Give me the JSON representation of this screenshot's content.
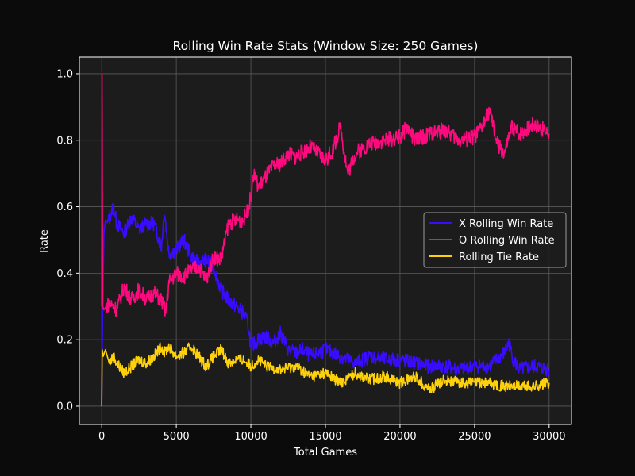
{
  "chart_data": {
    "type": "line",
    "title": "Rolling Win Rate Stats (Window Size: 250 Games)",
    "xlabel": "Total Games",
    "ylabel": "Rate",
    "xlim": [
      -1500,
      31500
    ],
    "ylim": [
      -0.055,
      1.05
    ],
    "xticks": [
      0,
      5000,
      10000,
      15000,
      20000,
      25000,
      30000
    ],
    "yticks": [
      0.0,
      0.2,
      0.4,
      0.6,
      0.8,
      1.0
    ],
    "xtick_labels": [
      "0",
      "5000",
      "10000",
      "15000",
      "20000",
      "25000",
      "30000"
    ],
    "ytick_labels": [
      "0.0",
      "0.2",
      "0.4",
      "0.6",
      "0.8",
      "1.0"
    ],
    "grid": true,
    "legend_position": "center-right",
    "series": [
      {
        "name": "X Rolling Win Rate",
        "color": "#3a0cff",
        "x": [
          0,
          50,
          150,
          250,
          400,
          600,
          800,
          1000,
          1500,
          2000,
          2500,
          3000,
          3500,
          4000,
          4200,
          4500,
          5000,
          5500,
          6000,
          6500,
          7000,
          7500,
          8000,
          8500,
          9000,
          9500,
          9800,
          10000,
          10500,
          11000,
          11500,
          12000,
          12500,
          13000,
          13500,
          14000,
          15000,
          16000,
          17000,
          18000,
          19000,
          20000,
          21000,
          22000,
          23000,
          24000,
          25000,
          26000,
          27000,
          27300,
          27600,
          28000,
          29000,
          30000
        ],
        "y": [
          0.0,
          0.25,
          0.52,
          0.56,
          0.55,
          0.58,
          0.6,
          0.55,
          0.52,
          0.57,
          0.53,
          0.55,
          0.55,
          0.48,
          0.59,
          0.46,
          0.47,
          0.5,
          0.45,
          0.43,
          0.44,
          0.42,
          0.35,
          0.32,
          0.3,
          0.28,
          0.25,
          0.18,
          0.2,
          0.21,
          0.19,
          0.22,
          0.17,
          0.16,
          0.17,
          0.15,
          0.17,
          0.15,
          0.13,
          0.15,
          0.14,
          0.14,
          0.13,
          0.12,
          0.12,
          0.11,
          0.12,
          0.12,
          0.16,
          0.19,
          0.14,
          0.11,
          0.12,
          0.11
        ]
      },
      {
        "name": "O Rolling Win Rate",
        "color": "#ff0a7e",
        "x": [
          0,
          20,
          60,
          150,
          300,
          500,
          800,
          1000,
          1500,
          2000,
          2500,
          3000,
          3500,
          4000,
          4300,
          4500,
          5000,
          5500,
          6000,
          6500,
          7000,
          7500,
          8000,
          8500,
          9000,
          9500,
          9800,
          10000,
          10200,
          10500,
          11000,
          11500,
          12000,
          12500,
          13000,
          14000,
          15000,
          15500,
          16000,
          16500,
          17000,
          18000,
          19000,
          20000,
          20500,
          21000,
          22000,
          23000,
          24000,
          25000,
          25500,
          26000,
          26500,
          27000,
          27500,
          28000,
          29000,
          30000
        ],
        "y": [
          0.3,
          1.0,
          0.3,
          0.29,
          0.3,
          0.31,
          0.3,
          0.29,
          0.36,
          0.32,
          0.35,
          0.32,
          0.34,
          0.32,
          0.28,
          0.37,
          0.4,
          0.39,
          0.41,
          0.42,
          0.38,
          0.45,
          0.44,
          0.55,
          0.56,
          0.56,
          0.59,
          0.63,
          0.7,
          0.66,
          0.69,
          0.72,
          0.73,
          0.76,
          0.75,
          0.78,
          0.74,
          0.77,
          0.84,
          0.7,
          0.76,
          0.79,
          0.8,
          0.81,
          0.84,
          0.8,
          0.82,
          0.83,
          0.8,
          0.81,
          0.84,
          0.89,
          0.79,
          0.76,
          0.84,
          0.82,
          0.85,
          0.82
        ]
      },
      {
        "name": "Rolling Tie Rate",
        "color": "#ffd10a",
        "x": [
          0,
          30,
          100,
          250,
          500,
          800,
          1000,
          1500,
          2000,
          2500,
          3000,
          3500,
          4000,
          4200,
          4500,
          5000,
          5500,
          6000,
          6500,
          7000,
          7500,
          8000,
          8500,
          9000,
          9500,
          10000,
          10500,
          11000,
          12000,
          13000,
          14000,
          15000,
          16000,
          17000,
          18000,
          19000,
          20000,
          21000,
          22000,
          23000,
          24000,
          25000,
          26000,
          27000,
          28000,
          29000,
          30000
        ],
        "y": [
          0.0,
          0.17,
          0.15,
          0.17,
          0.13,
          0.15,
          0.13,
          0.1,
          0.12,
          0.14,
          0.13,
          0.15,
          0.18,
          0.16,
          0.18,
          0.15,
          0.16,
          0.18,
          0.15,
          0.12,
          0.15,
          0.17,
          0.13,
          0.14,
          0.14,
          0.12,
          0.14,
          0.12,
          0.11,
          0.12,
          0.09,
          0.1,
          0.07,
          0.1,
          0.08,
          0.09,
          0.07,
          0.09,
          0.05,
          0.08,
          0.07,
          0.07,
          0.07,
          0.06,
          0.06,
          0.06,
          0.07
        ]
      }
    ]
  }
}
